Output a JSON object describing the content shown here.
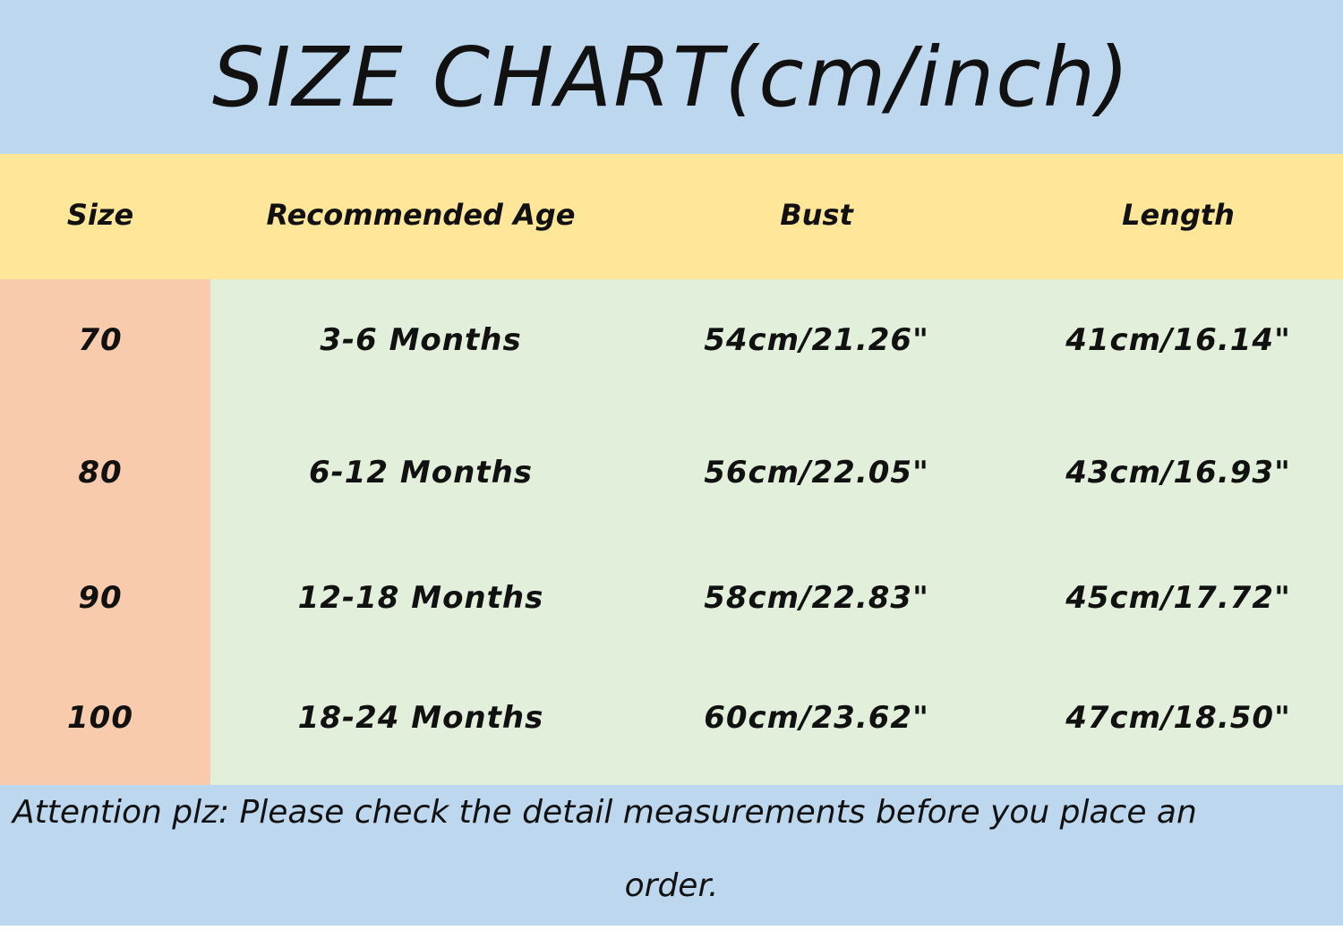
{
  "title": "SIZE CHART(cm/inch)",
  "colors": {
    "title_bg": "#BDD7EE",
    "header_bg": "#FFE699",
    "size_col_bg": "#F8CBAD",
    "body_bg": "#E2EFDA",
    "footer_bg": "#BDD7EE"
  },
  "table": {
    "headers": [
      "Size",
      "Recommended Age",
      "Bust",
      "Length"
    ],
    "rows": [
      [
        "70",
        "3-6 Months",
        "54cm/21.26\"",
        "41cm/16.14\""
      ],
      [
        "80",
        "6-12 Months",
        "56cm/22.05\"",
        "43cm/16.93\""
      ],
      [
        "90",
        "12-18 Months",
        "58cm/22.83\"",
        "45cm/17.72\""
      ],
      [
        "100",
        "18-24 Months",
        "60cm/23.62\"",
        "47cm/18.50\""
      ]
    ]
  },
  "footer": {
    "line1": "Attention plz:  Please check the detail measurements before you place an",
    "line2": "order."
  }
}
